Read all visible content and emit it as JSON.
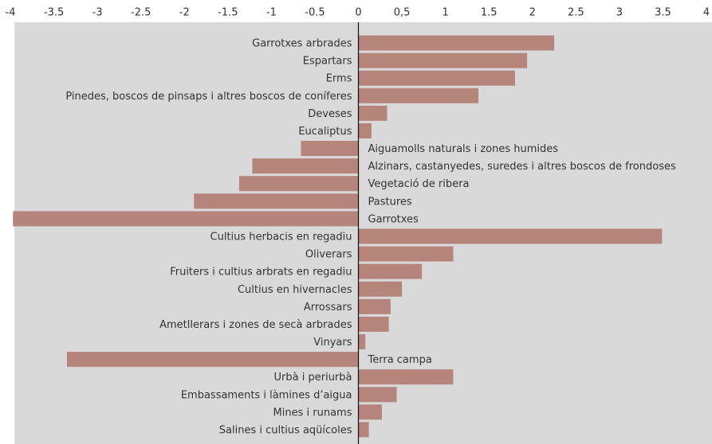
{
  "chart_data": {
    "type": "bar",
    "orientation": "horizontal",
    "categories": [
      "Garrotxes arbrades",
      "Espartars",
      "Erms",
      "Pinedes, boscos de pinsaps i altres boscos de coníferes",
      "Deveses",
      "Eucaliptus",
      "Aiguamolls naturals i zones humides",
      "Alzinars, castanyedes, suredes i altres boscos de frondoses",
      "Vegetació de ribera",
      "Pastures",
      "Garrotxes",
      "Cultius herbacis en regadiu",
      "Oliverars",
      "Fruiters i cultius arbrats en regadiu",
      "Cultius en hivernacles",
      "Arrossars",
      "Ametllerars i zones de secà arbrades",
      "Vinyars",
      "Terra campa",
      "Urbà i periurbà",
      "Embassaments i làmines d’aigua",
      "Mines i runams",
      "Salines i cultius aqüícoles"
    ],
    "values": [
      2.25,
      1.94,
      1.8,
      1.38,
      0.33,
      0.15,
      -0.66,
      -1.22,
      -1.37,
      -1.89,
      -3.97,
      3.49,
      1.09,
      0.73,
      0.5,
      0.37,
      0.35,
      0.08,
      -3.35,
      1.09,
      0.44,
      0.27,
      0.12
    ],
    "color": "#b5847a",
    "xlim": [
      -4,
      4
    ],
    "xticks": [
      -4,
      -3.5,
      -3,
      -2.5,
      -2,
      -1.5,
      -1,
      -0.5,
      0,
      {
        "value": 0.5,
        "label": "0,5"
      },
      1,
      1.5,
      2,
      2.5,
      3,
      3.5,
      4
    ]
  }
}
